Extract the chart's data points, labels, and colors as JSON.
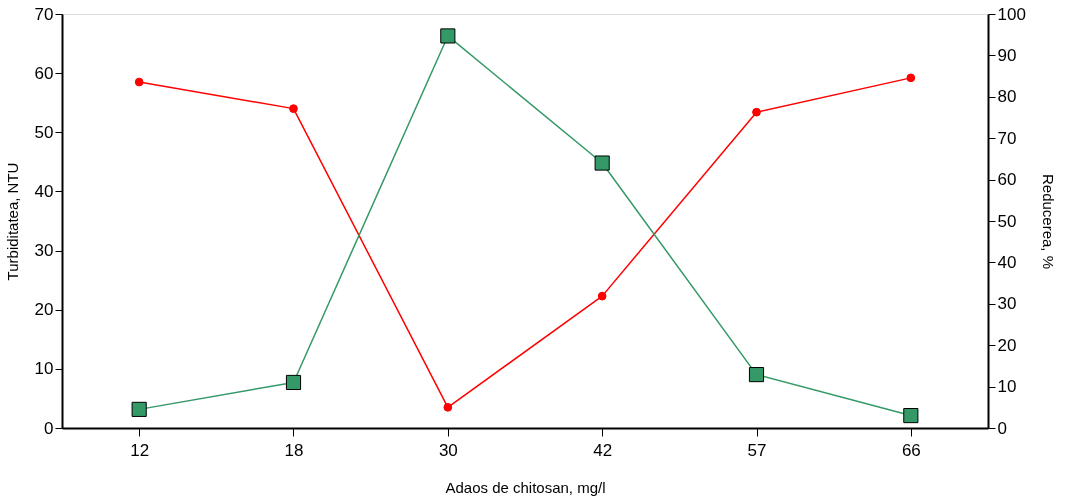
{
  "chart_data": {
    "type": "line",
    "xlabel": "Adaos de chitosan, mg/l",
    "ylabel": "Turbiditatea, NTU",
    "y2label": "Reducerea, %",
    "categories": [
      "12",
      "18",
      "30",
      "42",
      "57",
      "66"
    ],
    "series": [
      {
        "color": "#ff0000",
        "marker": "circle",
        "values": [
          58.5,
          54,
          3.5,
          22.3,
          53.4,
          59.2
        ]
      },
      {
        "color": "#339966",
        "marker": "square",
        "axis": "y2",
        "values": [
          4.5,
          11,
          94.7,
          64,
          12.9,
          3
        ]
      }
    ],
    "ylim": [
      0,
      70
    ],
    "yticks": [
      0,
      10,
      20,
      30,
      40,
      50,
      60,
      70
    ],
    "y2lim": [
      0,
      100
    ],
    "y2ticks": [
      0,
      10,
      20,
      30,
      40,
      50,
      60,
      70,
      80,
      90,
      100
    ],
    "grid": false
  }
}
